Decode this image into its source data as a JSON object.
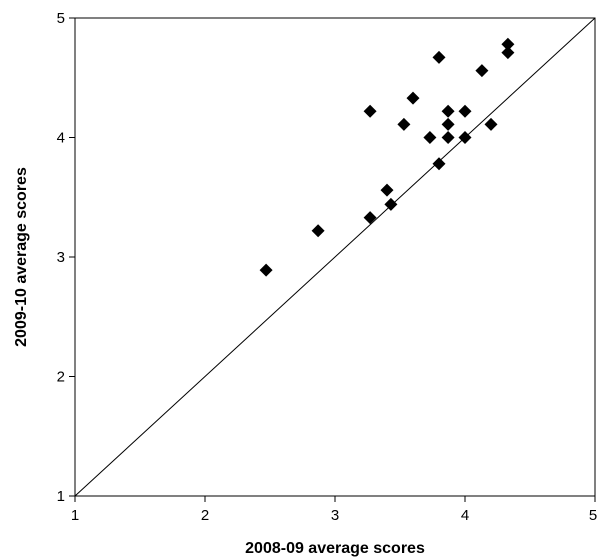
{
  "chart_data": {
    "type": "scatter",
    "title": "",
    "xlabel": "2008-09 average scores",
    "ylabel": "2009-10 average scores",
    "xlim": [
      1,
      5
    ],
    "ylim": [
      1,
      5
    ],
    "xticks": [
      "1",
      "2",
      "3",
      "4",
      "5"
    ],
    "yticks": [
      "1",
      "2",
      "3",
      "4",
      "5"
    ],
    "grid": false,
    "legend": "none",
    "marker": "diamond",
    "marker_color": "#000000",
    "reference_line": {
      "label": "",
      "from": [
        1,
        1
      ],
      "to": [
        5,
        5
      ]
    },
    "points": [
      {
        "x": 2.47,
        "y": 2.89
      },
      {
        "x": 2.87,
        "y": 3.22
      },
      {
        "x": 3.27,
        "y": 3.33
      },
      {
        "x": 3.27,
        "y": 4.22
      },
      {
        "x": 3.4,
        "y": 3.56
      },
      {
        "x": 3.43,
        "y": 3.44
      },
      {
        "x": 3.53,
        "y": 4.11
      },
      {
        "x": 3.6,
        "y": 4.33
      },
      {
        "x": 3.73,
        "y": 4.0
      },
      {
        "x": 3.8,
        "y": 3.78
      },
      {
        "x": 3.8,
        "y": 4.67
      },
      {
        "x": 3.87,
        "y": 4.0
      },
      {
        "x": 3.87,
        "y": 4.11
      },
      {
        "x": 3.87,
        "y": 4.22
      },
      {
        "x": 4.0,
        "y": 4.0
      },
      {
        "x": 4.0,
        "y": 4.22
      },
      {
        "x": 4.13,
        "y": 4.56
      },
      {
        "x": 4.2,
        "y": 4.11
      },
      {
        "x": 4.33,
        "y": 4.71
      },
      {
        "x": 4.33,
        "y": 4.78
      }
    ]
  }
}
